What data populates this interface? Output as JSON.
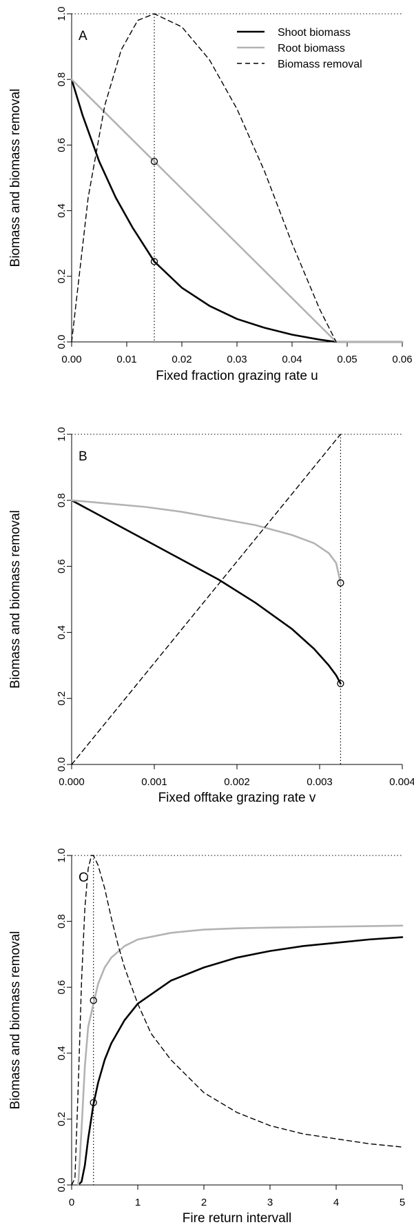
{
  "chart_data": [
    {
      "type": "line",
      "panel_label": "A",
      "xlabel": "Fixed fraction grazing rate u",
      "ylabel": "Biomass and biomass removal",
      "xlim": [
        0,
        0.06
      ],
      "ylim": [
        0,
        1
      ],
      "xticks": [
        "0.00",
        "0.01",
        "0.02",
        "0.03",
        "0.04",
        "0.05",
        "0.06"
      ],
      "yticks": [
        "0.0",
        "0.2",
        "0.4",
        "0.6",
        "0.8",
        "1.0"
      ],
      "optimum_x": 0.015,
      "reference_y": 1.0,
      "legend": {
        "position": "top-right",
        "entries": [
          {
            "label": "Shoot biomass",
            "style": "solid",
            "color": "#000000"
          },
          {
            "label": "Root biomass",
            "style": "solid",
            "color": "#b3b3b3"
          },
          {
            "label": "Biomass removal",
            "style": "dashed",
            "color": "#000000"
          }
        ]
      },
      "series": [
        {
          "name": "Shoot biomass",
          "x": [
            0,
            0.002,
            0.005,
            0.008,
            0.011,
            0.015,
            0.02,
            0.025,
            0.03,
            0.035,
            0.04,
            0.045,
            0.048,
            0.06
          ],
          "y": [
            0.8,
            0.69,
            0.55,
            0.44,
            0.35,
            0.245,
            0.165,
            0.11,
            0.07,
            0.043,
            0.022,
            0.007,
            0.0,
            0.0
          ]
        },
        {
          "name": "Root biomass",
          "x": [
            0,
            0.015,
            0.048,
            0.06
          ],
          "y": [
            0.8,
            0.55,
            0.0,
            0.0
          ]
        },
        {
          "name": "Biomass removal",
          "x": [
            0,
            0.003,
            0.006,
            0.009,
            0.012,
            0.015,
            0.02,
            0.025,
            0.03,
            0.035,
            0.04,
            0.045,
            0.048
          ],
          "y": [
            0.0,
            0.44,
            0.72,
            0.89,
            0.98,
            1.0,
            0.96,
            0.86,
            0.71,
            0.52,
            0.3,
            0.1,
            0.0
          ]
        }
      ],
      "markers": [
        {
          "x": 0.015,
          "y": 0.55
        },
        {
          "x": 0.015,
          "y": 0.245
        }
      ]
    },
    {
      "type": "line",
      "panel_label": "B",
      "xlabel": "Fixed offtake grazing rate v",
      "ylabel": "Biomass and biomass removal",
      "xlim": [
        0,
        0.0045
      ],
      "ylim": [
        0,
        1
      ],
      "xticks": [
        "0.000",
        "0.001",
        "0.002",
        "0.003",
        "0.004"
      ],
      "yticks": [
        "0.0",
        "0.2",
        "0.4",
        "0.6",
        "0.8",
        "1.0"
      ],
      "optimum_x": 0.00366,
      "reference_y": 1.0,
      "series": [
        {
          "name": "Shoot biomass",
          "x": [
            0,
            0.0005,
            0.001,
            0.0015,
            0.002,
            0.0025,
            0.003,
            0.0033,
            0.0035,
            0.0036,
            0.00366
          ],
          "y": [
            0.8,
            0.74,
            0.68,
            0.62,
            0.56,
            0.49,
            0.41,
            0.35,
            0.3,
            0.27,
            0.245
          ]
        },
        {
          "name": "Root biomass",
          "x": [
            0,
            0.0005,
            0.001,
            0.0015,
            0.002,
            0.0025,
            0.003,
            0.0033,
            0.0035,
            0.0036,
            0.00366
          ],
          "y": [
            0.8,
            0.79,
            0.78,
            0.765,
            0.745,
            0.725,
            0.695,
            0.67,
            0.64,
            0.61,
            0.55
          ]
        },
        {
          "name": "Biomass removal",
          "x": [
            0,
            0.00366
          ],
          "y": [
            0.0,
            1.0
          ]
        }
      ],
      "markers": [
        {
          "x": 0.00366,
          "y": 0.55
        },
        {
          "x": 0.00366,
          "y": 0.245
        }
      ]
    },
    {
      "type": "line",
      "panel_label": "C",
      "xlabel": "Fire return intervall",
      "ylabel": "Biomass and biomass removal",
      "xlim": [
        0,
        5
      ],
      "ylim": [
        0,
        1
      ],
      "xticks": [
        "0",
        "1",
        "2",
        "3",
        "4",
        "5"
      ],
      "yticks": [
        "0.0",
        "0.2",
        "0.4",
        "0.6",
        "0.8",
        "1.0"
      ],
      "optimum_x": 0.33,
      "reference_y": 1.0,
      "series": [
        {
          "name": "Shoot biomass",
          "x": [
            0.1,
            0.15,
            0.2,
            0.25,
            0.33,
            0.4,
            0.5,
            0.6,
            0.8,
            1.0,
            1.5,
            2.0,
            2.5,
            3.0,
            3.5,
            4.0,
            4.5,
            5.0
          ],
          "y": [
            0.0,
            0.01,
            0.06,
            0.14,
            0.245,
            0.31,
            0.38,
            0.43,
            0.5,
            0.55,
            0.62,
            0.66,
            0.69,
            0.71,
            0.725,
            0.735,
            0.745,
            0.752
          ]
        },
        {
          "name": "Root biomass",
          "x": [
            0.1,
            0.15,
            0.2,
            0.25,
            0.33,
            0.4,
            0.5,
            0.6,
            0.8,
            1.0,
            1.5,
            2.0,
            2.5,
            3.0,
            4.0,
            5.0
          ],
          "y": [
            0.0,
            0.17,
            0.36,
            0.48,
            0.55,
            0.61,
            0.66,
            0.69,
            0.725,
            0.745,
            0.765,
            0.775,
            0.779,
            0.781,
            0.784,
            0.787
          ]
        },
        {
          "name": "Biomass removal",
          "x": [
            0,
            0.05,
            0.1,
            0.15,
            0.2,
            0.25,
            0.3,
            0.33,
            0.4,
            0.5,
            0.6,
            0.7,
            0.8,
            1.0,
            1.2,
            1.5,
            2.0,
            2.5,
            3.0,
            3.5,
            4.0,
            4.5,
            5.0
          ],
          "y": [
            0.0,
            0.02,
            0.3,
            0.62,
            0.84,
            0.96,
            1.0,
            1.0,
            0.97,
            0.9,
            0.81,
            0.73,
            0.66,
            0.55,
            0.46,
            0.38,
            0.28,
            0.22,
            0.18,
            0.155,
            0.14,
            0.125,
            0.115
          ]
        }
      ],
      "markers": [
        {
          "x": 0.33,
          "y": 0.56
        },
        {
          "x": 0.33,
          "y": 0.25
        }
      ]
    }
  ]
}
